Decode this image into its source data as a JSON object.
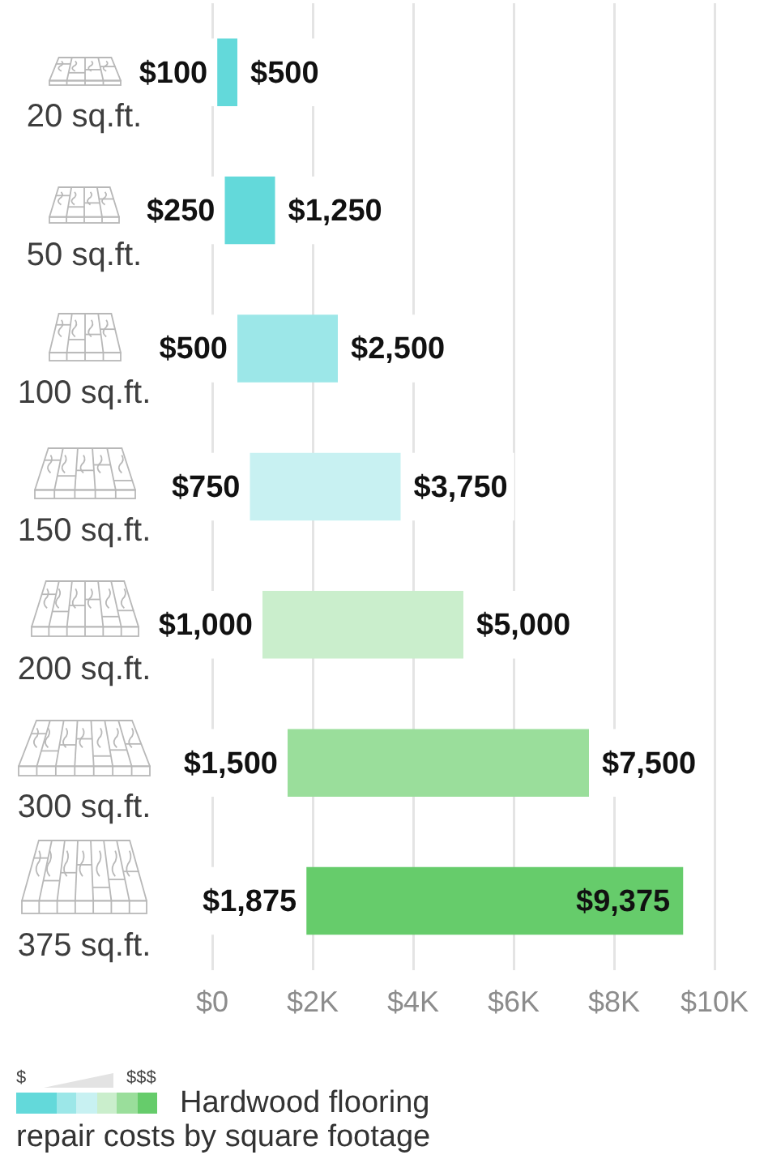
{
  "chart_data": {
    "type": "bar",
    "orientation": "horizontal",
    "title": "Hardwood flooring repair costs by square footage",
    "categories": [
      "20 sq.ft.",
      "50 sq.ft.",
      "100 sq.ft.",
      "150 sq.ft.",
      "200 sq.ft.",
      "300 sq.ft.",
      "375 sq.ft."
    ],
    "base": [
      100,
      250,
      500,
      750,
      1000,
      1500,
      1875
    ],
    "values": [
      400,
      1000,
      2000,
      3000,
      4000,
      6000,
      7500
    ],
    "colors": [
      "#63d9da",
      "#63d9da",
      "#9ce7e8",
      "#c8f1f2",
      "#caeecc",
      "#9ade9b",
      "#66cc6b"
    ],
    "xlim": [
      0,
      10000
    ],
    "xticks": [
      {
        "value": 0,
        "label": "$0"
      },
      {
        "value": 2000,
        "label": "$2K"
      },
      {
        "value": 4000,
        "label": "$4K"
      },
      {
        "value": 6000,
        "label": "$6K"
      },
      {
        "value": 8000,
        "label": "$8K"
      },
      {
        "value": 10000,
        "label": "$10K"
      }
    ],
    "grid": "x",
    "annotations": [
      "$100",
      "$500",
      "$250",
      "$1,250",
      "$500",
      "$2,500",
      "$750",
      "$3,750",
      "$1,000",
      "$5,000",
      "$1,500",
      "$7,500",
      "$1,875",
      "$9,375",
      "$",
      "$$$"
    ]
  }
}
